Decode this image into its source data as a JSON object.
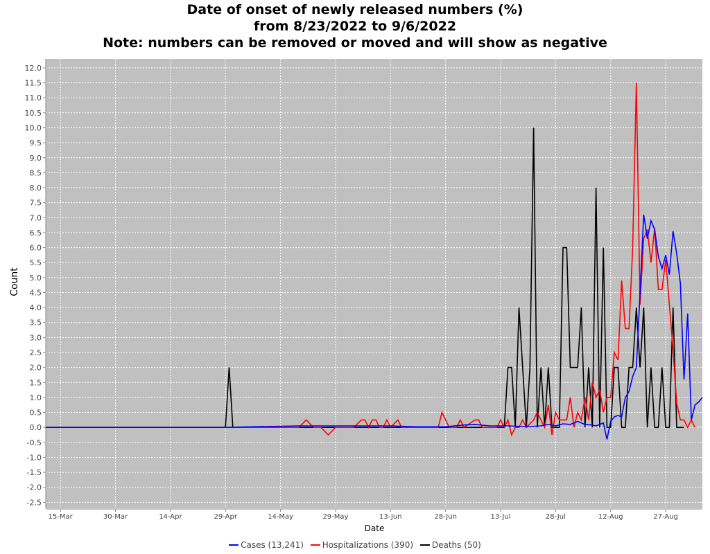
{
  "chart_data": {
    "type": "line",
    "title": [
      "Date of onset of newly released numbers (%)",
      "from 8/23/2022 to 9/6/2022",
      "Note: numbers can be removed or moved and will show as negative"
    ],
    "xlabel": "Date",
    "ylabel": "Count",
    "ylim": [
      -2.7,
      12.3
    ],
    "xlim": [
      "2022-03-11",
      "2022-09-06"
    ],
    "grid": true,
    "legend_position": "bottom",
    "x_ticks": [
      "2022-03-15",
      "2022-03-30",
      "2022-04-14",
      "2022-04-29",
      "2022-05-14",
      "2022-05-29",
      "2022-06-13",
      "2022-06-28",
      "2022-07-13",
      "2022-07-28",
      "2022-08-12",
      "2022-08-27"
    ],
    "x_tick_labels": [
      "15-Mar",
      "30-Mar",
      "14-Apr",
      "29-Apr",
      "14-May",
      "29-May",
      "13-Jun",
      "28-Jun",
      "13-Jul",
      "28-Jul",
      "12-Aug",
      "27-Aug"
    ],
    "y_ticks": [
      -2.5,
      -2.0,
      -1.5,
      -1.0,
      -0.5,
      0.0,
      0.5,
      1.0,
      1.5,
      2.0,
      2.5,
      3.0,
      3.5,
      4.0,
      4.5,
      5.0,
      5.5,
      6.0,
      6.5,
      7.0,
      7.5,
      8.0,
      8.5,
      9.0,
      9.5,
      10.0,
      10.5,
      11.0,
      11.5,
      12.0
    ],
    "y_tick_labels": [
      "-2.5",
      "-2.0",
      "-1.5",
      "-1.0",
      "-0.5",
      "0.0",
      "0.5",
      "1.0",
      "1.5",
      "2.0",
      "2.5",
      "3.0",
      "3.5",
      "4.0",
      "4.5",
      "5.0",
      "5.5",
      "6.0",
      "6.5",
      "7.0",
      "7.5",
      "8.0",
      "8.5",
      "9.0",
      "9.5",
      "10.0",
      "10.5",
      "11.0",
      "11.5",
      "12.0"
    ],
    "series": [
      {
        "name": "Cases (13,241)",
        "color": "#0000ff",
        "points": [
          [
            "2022-03-11",
            0
          ],
          [
            "2022-04-28",
            0
          ],
          [
            "2022-05-19",
            0.05
          ],
          [
            "2022-06-13",
            0.05
          ],
          [
            "2022-06-20",
            0.02
          ],
          [
            "2022-06-28",
            0.02
          ],
          [
            "2022-07-03",
            0.08
          ],
          [
            "2022-07-06",
            0.1
          ],
          [
            "2022-07-10",
            0.05
          ],
          [
            "2022-07-15",
            0.05
          ],
          [
            "2022-07-20",
            0.02
          ],
          [
            "2022-07-24",
            0.05
          ],
          [
            "2022-07-26",
            0.1
          ],
          [
            "2022-07-28",
            0.05
          ],
          [
            "2022-07-30",
            0.12
          ],
          [
            "2022-08-01",
            0.1
          ],
          [
            "2022-08-03",
            0.2
          ],
          [
            "2022-08-05",
            0.1
          ],
          [
            "2022-08-07",
            0.08
          ],
          [
            "2022-08-08",
            0.05
          ],
          [
            "2022-08-09",
            0.1
          ],
          [
            "2022-08-10",
            0.15
          ],
          [
            "2022-08-11",
            -0.4
          ],
          [
            "2022-08-12",
            0.2
          ],
          [
            "2022-08-13",
            0.35
          ],
          [
            "2022-08-14",
            0.4
          ],
          [
            "2022-08-15",
            0.35
          ],
          [
            "2022-08-16",
            1.0
          ],
          [
            "2022-08-17",
            1.2
          ],
          [
            "2022-08-18",
            1.7
          ],
          [
            "2022-08-19",
            2.0
          ],
          [
            "2022-08-20",
            4.5
          ],
          [
            "2022-08-21",
            7.1
          ],
          [
            "2022-08-22",
            6.3
          ],
          [
            "2022-08-23",
            6.9
          ],
          [
            "2022-08-24",
            6.6
          ],
          [
            "2022-08-25",
            5.7
          ],
          [
            "2022-08-26",
            5.3
          ],
          [
            "2022-08-27",
            5.75
          ],
          [
            "2022-08-28",
            5.1
          ],
          [
            "2022-08-29",
            6.55
          ],
          [
            "2022-08-30",
            5.8
          ],
          [
            "2022-08-31",
            4.8
          ],
          [
            "2022-09-01",
            1.6
          ],
          [
            "2022-09-02",
            3.8
          ],
          [
            "2022-09-03",
            0.25
          ],
          [
            "2022-09-04",
            0.75
          ],
          [
            "2022-09-05",
            0.85
          ],
          [
            "2022-09-06",
            1.0
          ]
        ]
      },
      {
        "name": "Hospitalizations (390)",
        "color": "#ff0000",
        "points": [
          [
            "2022-03-11",
            0
          ],
          [
            "2022-05-19",
            0
          ],
          [
            "2022-05-21",
            0.25
          ],
          [
            "2022-05-23",
            0
          ],
          [
            "2022-05-25",
            0
          ],
          [
            "2022-05-27",
            -0.25
          ],
          [
            "2022-05-29",
            0
          ],
          [
            "2022-06-03",
            0
          ],
          [
            "2022-06-05",
            0.25
          ],
          [
            "2022-06-06",
            0.25
          ],
          [
            "2022-06-07",
            0
          ],
          [
            "2022-06-08",
            0.25
          ],
          [
            "2022-06-09",
            0.25
          ],
          [
            "2022-06-10",
            0
          ],
          [
            "2022-06-11",
            0
          ],
          [
            "2022-06-12",
            0.25
          ],
          [
            "2022-06-13",
            0
          ],
          [
            "2022-06-15",
            0.25
          ],
          [
            "2022-06-16",
            0
          ],
          [
            "2022-06-26",
            0
          ],
          [
            "2022-06-27",
            0.5
          ],
          [
            "2022-06-29",
            0
          ],
          [
            "2022-07-01",
            0
          ],
          [
            "2022-07-02",
            0.25
          ],
          [
            "2022-07-03",
            0
          ],
          [
            "2022-07-06",
            0.25
          ],
          [
            "2022-07-07",
            0.25
          ],
          [
            "2022-07-08",
            0
          ],
          [
            "2022-07-12",
            0
          ],
          [
            "2022-07-13",
            0.25
          ],
          [
            "2022-07-14",
            0
          ],
          [
            "2022-07-15",
            0.25
          ],
          [
            "2022-07-16",
            -0.25
          ],
          [
            "2022-07-17",
            0
          ],
          [
            "2022-07-18",
            0
          ],
          [
            "2022-07-19",
            0.25
          ],
          [
            "2022-07-20",
            0
          ],
          [
            "2022-07-22",
            0.25
          ],
          [
            "2022-07-23",
            0.5
          ],
          [
            "2022-07-24",
            0.25
          ],
          [
            "2022-07-25",
            0
          ],
          [
            "2022-07-26",
            0.75
          ],
          [
            "2022-07-27",
            -0.25
          ],
          [
            "2022-07-28",
            0.5
          ],
          [
            "2022-07-29",
            0.25
          ],
          [
            "2022-07-31",
            0.25
          ],
          [
            "2022-08-01",
            1.0
          ],
          [
            "2022-08-02",
            0
          ],
          [
            "2022-08-03",
            0.5
          ],
          [
            "2022-08-04",
            0.25
          ],
          [
            "2022-08-05",
            1.0
          ],
          [
            "2022-08-06",
            0.25
          ],
          [
            "2022-08-07",
            1.5
          ],
          [
            "2022-08-08",
            1.0
          ],
          [
            "2022-08-09",
            1.25
          ],
          [
            "2022-08-10",
            0.5
          ],
          [
            "2022-08-11",
            1.0
          ],
          [
            "2022-08-12",
            1.0
          ],
          [
            "2022-08-13",
            2.5
          ],
          [
            "2022-08-14",
            2.25
          ],
          [
            "2022-08-15",
            4.9
          ],
          [
            "2022-08-16",
            3.3
          ],
          [
            "2022-08-17",
            3.3
          ],
          [
            "2022-08-18",
            6.0
          ],
          [
            "2022-08-19",
            11.5
          ],
          [
            "2022-08-20",
            4.1
          ],
          [
            "2022-08-21",
            6.3
          ],
          [
            "2022-08-22",
            6.6
          ],
          [
            "2022-08-23",
            5.5
          ],
          [
            "2022-08-24",
            6.65
          ],
          [
            "2022-08-25",
            4.6
          ],
          [
            "2022-08-26",
            4.6
          ],
          [
            "2022-08-27",
            5.6
          ],
          [
            "2022-08-28",
            4.1
          ],
          [
            "2022-08-29",
            2.6
          ],
          [
            "2022-08-30",
            0.8
          ],
          [
            "2022-08-31",
            0.25
          ],
          [
            "2022-09-01",
            0.25
          ],
          [
            "2022-09-02",
            0
          ],
          [
            "2022-09-03",
            0.25
          ],
          [
            "2022-09-04",
            0
          ]
        ]
      },
      {
        "name": "Deaths (50)",
        "color": "#000000",
        "points": [
          [
            "2022-03-11",
            0
          ],
          [
            "2022-04-29",
            0
          ],
          [
            "2022-04-30",
            2.0
          ],
          [
            "2022-05-01",
            0
          ],
          [
            "2022-07-14",
            0
          ],
          [
            "2022-07-15",
            2.0
          ],
          [
            "2022-07-16",
            2.0
          ],
          [
            "2022-07-17",
            0
          ],
          [
            "2022-07-18",
            4.0
          ],
          [
            "2022-07-19",
            2.0
          ],
          [
            "2022-07-20",
            0
          ],
          [
            "2022-07-21",
            2.0
          ],
          [
            "2022-07-22",
            10.0
          ],
          [
            "2022-07-23",
            0
          ],
          [
            "2022-07-24",
            2.0
          ],
          [
            "2022-07-25",
            0
          ],
          [
            "2022-07-26",
            2.0
          ],
          [
            "2022-07-27",
            0
          ],
          [
            "2022-07-29",
            0
          ],
          [
            "2022-07-30",
            6.0
          ],
          [
            "2022-07-31",
            6.0
          ],
          [
            "2022-08-01",
            2.0
          ],
          [
            "2022-08-03",
            2.0
          ],
          [
            "2022-08-04",
            4.0
          ],
          [
            "2022-08-05",
            0
          ],
          [
            "2022-08-06",
            2.0
          ],
          [
            "2022-08-07",
            0
          ],
          [
            "2022-08-08",
            8.0
          ],
          [
            "2022-08-09",
            0
          ],
          [
            "2022-08-10",
            6.0
          ],
          [
            "2022-08-11",
            0
          ],
          [
            "2022-08-12",
            0
          ],
          [
            "2022-08-13",
            2.0
          ],
          [
            "2022-08-14",
            2.0
          ],
          [
            "2022-08-15",
            0
          ],
          [
            "2022-08-16",
            0
          ],
          [
            "2022-08-17",
            2.0
          ],
          [
            "2022-08-18",
            2.0
          ],
          [
            "2022-08-19",
            4.0
          ],
          [
            "2022-08-20",
            2.0
          ],
          [
            "2022-08-21",
            4.0
          ],
          [
            "2022-08-22",
            0
          ],
          [
            "2022-08-23",
            2.0
          ],
          [
            "2022-08-24",
            0
          ],
          [
            "2022-08-25",
            0
          ],
          [
            "2022-08-26",
            2.0
          ],
          [
            "2022-08-27",
            0
          ],
          [
            "2022-08-28",
            0
          ],
          [
            "2022-08-29",
            4.0
          ],
          [
            "2022-08-30",
            0
          ],
          [
            "2022-08-31",
            0
          ],
          [
            "2022-09-01",
            0
          ]
        ]
      }
    ]
  },
  "colors": {
    "plot_background": "#c0c0c0",
    "gridline": "#ffffff",
    "axis": "#888888",
    "tick_text": "#444444"
  }
}
